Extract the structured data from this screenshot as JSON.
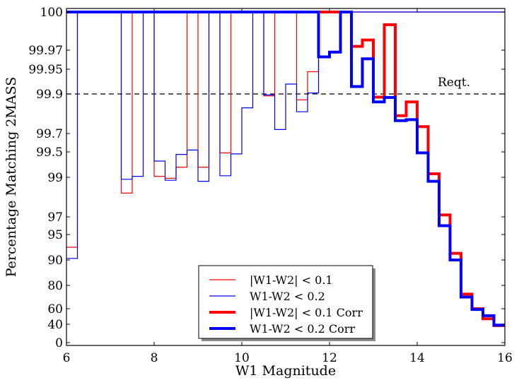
{
  "chart_data": {
    "type": "line",
    "xlabel": "W1 Magnitude",
    "ylabel": "Percentage Matching 2MASS",
    "xlim": [
      6,
      16
    ],
    "x_ticks": [
      6,
      8,
      10,
      12,
      14,
      16
    ],
    "y_tick_labels": [
      "0",
      "40",
      "60",
      "80",
      "90",
      "95",
      "97",
      "99",
      "99.5",
      "99.7",
      "99.9",
      "99.95",
      "99.97",
      "100"
    ],
    "y_scale": "nonlinear (stretched toward 100)",
    "grid": false,
    "legend_position": "bottom-center",
    "bin_edges": [
      6.0,
      6.25,
      6.5,
      6.75,
      7.0,
      7.25,
      7.5,
      7.75,
      8.0,
      8.25,
      8.5,
      8.75,
      9.0,
      9.25,
      9.5,
      9.75,
      10.0,
      10.25,
      10.5,
      10.75,
      11.0,
      11.25,
      11.5,
      11.75,
      12.0,
      12.25,
      12.5,
      12.75,
      13.0,
      13.25,
      13.5,
      13.75,
      14.0,
      14.25,
      14.5,
      14.75,
      15.0,
      15.25,
      15.5,
      15.75,
      16.0
    ],
    "series": [
      {
        "name": "|W1-W2| < 0.1",
        "color": "#ff0000",
        "linewidth": "thin",
        "values": [
          92.5,
          100,
          100,
          100,
          100,
          98.2,
          100,
          100,
          99.02,
          98.95,
          99.2,
          100,
          99.2,
          100,
          99.48,
          100,
          100,
          100,
          99.89,
          100,
          100,
          99.87,
          99.945,
          100,
          100,
          100,
          100,
          100,
          100,
          100,
          100,
          100,
          100,
          100,
          100,
          100,
          100,
          100,
          100,
          100
        ]
      },
      {
        "name": "W1-W2  < 0.2",
        "color": "#0000ff",
        "linewidth": "thin",
        "values": [
          90.3,
          100,
          100,
          100,
          100,
          98.9,
          99.02,
          100,
          99.32,
          98.85,
          99.45,
          99.52,
          98.8,
          100,
          99.03,
          99.46,
          99.83,
          100,
          99.895,
          99.72,
          99.92,
          99.81,
          99.902,
          100,
          100,
          100,
          100,
          100,
          100,
          100,
          100,
          100,
          100,
          100,
          100,
          100,
          100,
          100,
          100,
          100
        ]
      },
      {
        "name": "|W1-W2| < 0.1 Corr",
        "color": "#ff0000",
        "linewidth": "thick",
        "values": [
          100,
          100,
          100,
          100,
          100,
          100,
          100,
          100,
          100,
          100,
          100,
          100,
          100,
          100,
          100,
          100,
          100,
          100,
          100,
          100,
          100,
          100,
          100,
          100,
          100,
          100,
          99.973,
          99.978,
          99.884,
          99.99,
          99.79,
          99.86,
          99.735,
          99.07,
          97.1,
          91.3,
          72.5,
          60.0,
          47.0,
          37.0
        ]
      },
      {
        "name": "W1-W2  < 0.2 Corr",
        "color": "#0000ff",
        "linewidth": "thick",
        "values": [
          100,
          100,
          100,
          100,
          100,
          100,
          100,
          100,
          100,
          100,
          100,
          100,
          100,
          100,
          100,
          100,
          100,
          100,
          100,
          100,
          100,
          100,
          100,
          99.963,
          99.968,
          100,
          99.915,
          99.961,
          99.86,
          99.882,
          99.765,
          99.77,
          99.48,
          98.8,
          96.0,
          90.0,
          70.0,
          59.0,
          51.0,
          38.0
        ]
      }
    ],
    "reference_line": {
      "label": "Reqt.",
      "y": 99.9,
      "style": "dashed",
      "color": "#000000"
    }
  }
}
